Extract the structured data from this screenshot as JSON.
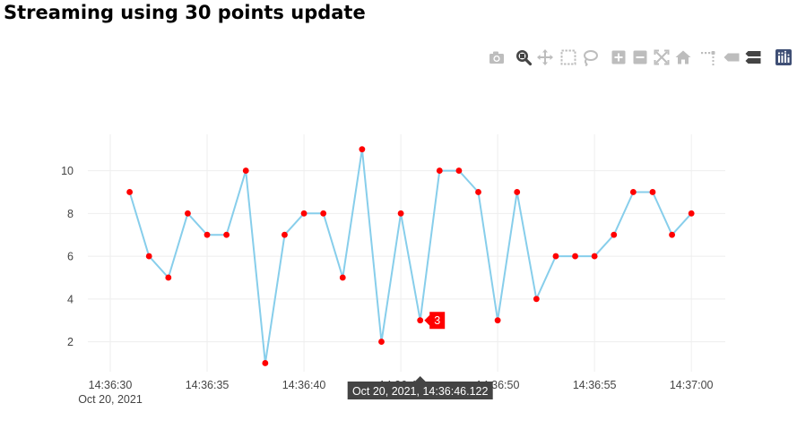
{
  "page": {
    "title": "Streaming using 30 points update"
  },
  "modebar": {
    "buttons": [
      {
        "name": "camera-icon",
        "title": "Download plot as a png"
      },
      {
        "name": "zoom-icon",
        "title": "Zoom"
      },
      {
        "name": "pan-icon",
        "title": "Pan"
      },
      {
        "name": "box-select-icon",
        "title": "Box Select"
      },
      {
        "name": "lasso-select-icon",
        "title": "Lasso Select"
      },
      {
        "name": "zoom-in-icon",
        "title": "Zoom in"
      },
      {
        "name": "zoom-out-icon",
        "title": "Zoom out"
      },
      {
        "name": "autoscale-icon",
        "title": "Autoscale"
      },
      {
        "name": "home-icon",
        "title": "Reset axes"
      },
      {
        "name": "spike-lines-icon",
        "title": "Toggle Spike Lines"
      },
      {
        "name": "hover-closest-icon",
        "title": "Show closest data on hover"
      },
      {
        "name": "hover-compare-icon",
        "title": "Compare data on hover"
      },
      {
        "name": "plotly-logo-icon",
        "title": "Produced with Plotly"
      }
    ],
    "active": "zoom-icon",
    "colors": {
      "inactive": "#bdbdbd",
      "active": "#444444",
      "logo_bg": "#3f4f75"
    }
  },
  "chart_data": {
    "type": "line",
    "title": "Streaming using 30 points update",
    "xlabel": "",
    "ylabel": "",
    "x_unit": "seconds",
    "x": [
      "14:36:31",
      "14:36:32",
      "14:36:33",
      "14:36:34",
      "14:36:35",
      "14:36:36",
      "14:36:37",
      "14:36:38",
      "14:36:39",
      "14:36:40",
      "14:36:41",
      "14:36:42",
      "14:36:43",
      "14:36:44",
      "14:36:45",
      "14:36:46",
      "14:36:47",
      "14:36:48",
      "14:36:49",
      "14:36:50",
      "14:36:51",
      "14:36:52",
      "14:36:53",
      "14:36:54",
      "14:36:55",
      "14:36:56",
      "14:36:57",
      "14:36:58",
      "14:36:59",
      "14:37:00"
    ],
    "series": [
      {
        "values": [
          9,
          6,
          5,
          8,
          7,
          7,
          10,
          1,
          7,
          8,
          8,
          5,
          11,
          2,
          8,
          3,
          10,
          10,
          9,
          3,
          9,
          4,
          6,
          6,
          6,
          7,
          9,
          9,
          7,
          8
        ]
      }
    ],
    "xlim": [
      "14:36:30",
      "14:37:00"
    ],
    "ylim": [
      0.6,
      11.7
    ],
    "x_ticks": [
      {
        "value": "14:36:30",
        "label": "14:36:30",
        "sublabel": "Oct 20, 2021"
      },
      {
        "value": "14:36:35",
        "label": "14:36:35"
      },
      {
        "value": "14:36:40",
        "label": "14:36:40"
      },
      {
        "value": "14:36:45",
        "label": "14:36:45"
      },
      {
        "value": "14:36:50",
        "label": "14:36:50"
      },
      {
        "value": "14:36:55",
        "label": "14:36:55"
      },
      {
        "value": "14:37:00",
        "label": "14:37:00"
      }
    ],
    "y_ticks": [
      2,
      4,
      6,
      8,
      10
    ],
    "grid": true,
    "colors": {
      "line": "#87ceeb",
      "marker": "#ff0000",
      "grid": "#eeeeee",
      "axis_text": "#444444"
    },
    "hover": {
      "x_value": "14:36:46",
      "x_label": "Oct 20, 2021, 14:36:46.122",
      "y_label": "3",
      "colors": {
        "x_bg": "#444444",
        "y_bg": "#ff0000"
      }
    }
  }
}
